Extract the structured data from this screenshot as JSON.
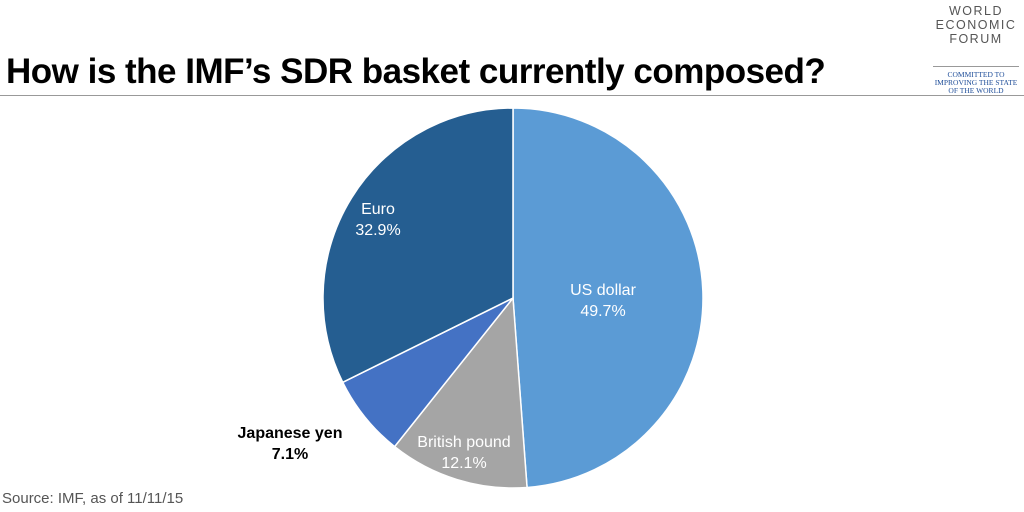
{
  "header": {
    "title": "How is the IMF’s SDR basket currently composed?"
  },
  "logo": {
    "lines": [
      "WORLD",
      "ECONOMIC",
      "FORUM"
    ],
    "tagline": [
      "COMMITTED TO",
      "IMPROVING THE STATE",
      "OF THE WORLD"
    ]
  },
  "footer": {
    "source": "Source: IMF, as of 11/11/15"
  },
  "chart_data": {
    "type": "pie",
    "title": "How is the IMF’s SDR basket currently composed?",
    "start": "top",
    "direction": "clockwise",
    "slices": [
      {
        "label": "US dollar",
        "value": 49.7,
        "display": "49.7%",
        "color": "#5b9bd5",
        "text_color": "#ffffff"
      },
      {
        "label": "British pound",
        "value": 12.1,
        "display": "12.1%",
        "color": "#a5a5a5",
        "text_color": "#ffffff"
      },
      {
        "label": "Japanese yen",
        "value": 7.1,
        "display": "7.1%",
        "color": "#4472c4",
        "text_color": "#000000"
      },
      {
        "label": "Euro",
        "value": 32.9,
        "display": "32.9%",
        "color": "#255e91",
        "text_color": "#ffffff"
      }
    ]
  }
}
